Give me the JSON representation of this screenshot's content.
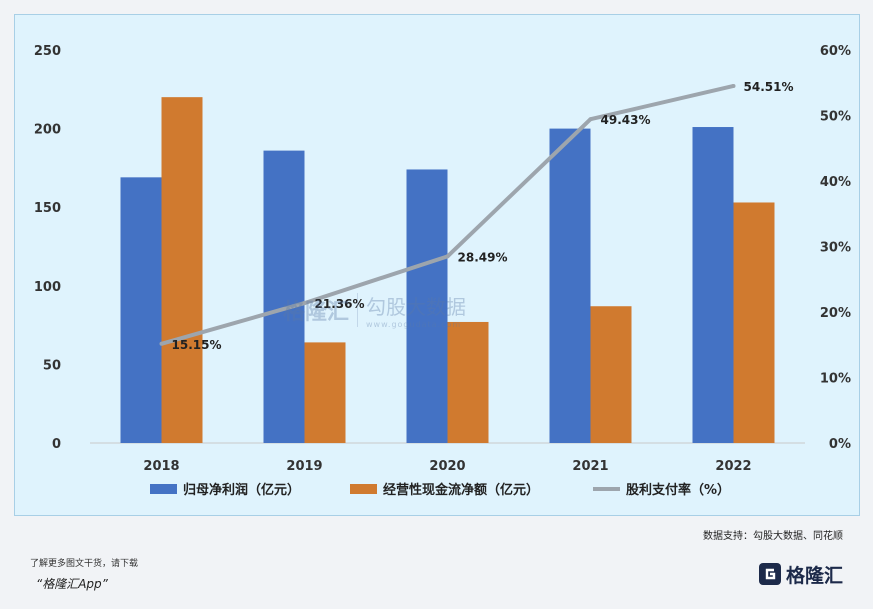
{
  "chart_data": {
    "type": "bar+line",
    "categories": [
      "2018",
      "2019",
      "2020",
      "2021",
      "2022"
    ],
    "series": [
      {
        "name": "归母净利润（亿元）",
        "type": "bar",
        "axis": "left",
        "color": "#4472c4",
        "values": [
          169,
          186,
          174,
          200,
          201
        ]
      },
      {
        "name": "经营性现金流净额（亿元）",
        "type": "bar",
        "axis": "left",
        "color": "#d07a2f",
        "values": [
          220,
          64,
          77,
          87,
          153
        ]
      },
      {
        "name": "股利支付率（%）",
        "type": "line",
        "axis": "right",
        "color": "#9da5ad",
        "values": [
          15.15,
          21.36,
          28.49,
          49.43,
          54.51
        ],
        "labels": [
          "15.15%",
          "21.36%",
          "28.49%",
          "49.43%",
          "54.51%"
        ]
      }
    ],
    "y_left": {
      "min": 0,
      "max": 250,
      "ticks": [
        "0",
        "50",
        "100",
        "150",
        "200",
        "250"
      ]
    },
    "y_right": {
      "min": 0,
      "max": 60,
      "ticks": [
        "0%",
        "10%",
        "20%",
        "30%",
        "40%",
        "50%",
        "60%"
      ]
    },
    "legend_position": "bottom"
  },
  "footer": {
    "source": "数据支持：勾股大数据、同花顺",
    "promo_text": "了解更多图文干货，请下载",
    "promo_app": "“格隆汇App”",
    "brand": "格隆汇"
  },
  "watermark": {
    "left_name": "格隆汇",
    "right_name": "勾股大数据",
    "right_sub": "www.gogudata.com"
  },
  "colors": {
    "bar1": "#4472c4",
    "bar2": "#d07a2f",
    "line": "#9da5ad",
    "panel": "#dff3fd"
  }
}
